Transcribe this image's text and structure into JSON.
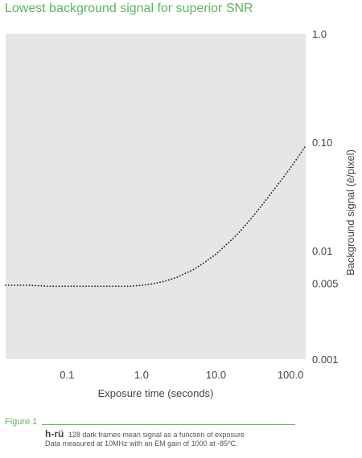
{
  "chart_data": {
    "type": "line",
    "title": "Lowest background signal for superior SNR",
    "xlabel": "Exposure time (seconds)",
    "ylabel": "Background signal (ē/pixel)",
    "x_scale": "log",
    "y_scale": "log",
    "xlim": [
      0.015,
      160
    ],
    "ylim": [
      0.001,
      1.0
    ],
    "x_ticks": [
      "0.1",
      "1.0",
      "10.0",
      "100.0"
    ],
    "y_ticks": [
      "1.0",
      "0.10",
      "0.01",
      "0.005",
      "0.001"
    ],
    "grid": false,
    "legend": "none",
    "background_color": "#e6e6e6",
    "series": [
      {
        "color": "#222222",
        "x": [
          0.015,
          0.03,
          0.06,
          0.1,
          0.2,
          0.4,
          0.7,
          1.0,
          1.3,
          2.0,
          3.0,
          5.0,
          7.0,
          10.0,
          15.0,
          20.0,
          30.0,
          50.0,
          70.0,
          100.0,
          130.0,
          160.0
        ],
        "y": [
          0.0048,
          0.0048,
          0.0047,
          0.0047,
          0.0047,
          0.0047,
          0.0047,
          0.0048,
          0.0049,
          0.0052,
          0.0057,
          0.0067,
          0.0078,
          0.0093,
          0.012,
          0.0145,
          0.02,
          0.031,
          0.042,
          0.058,
          0.075,
          0.093
        ]
      }
    ]
  },
  "figure": {
    "label": "Figure 1",
    "brand": "h-rü",
    "caption_line1": "128 dark frames mean signal as a function of exposure",
    "caption_line2": "Data measured at 10MHz with an EM gain of 1000 at -85ºC."
  }
}
